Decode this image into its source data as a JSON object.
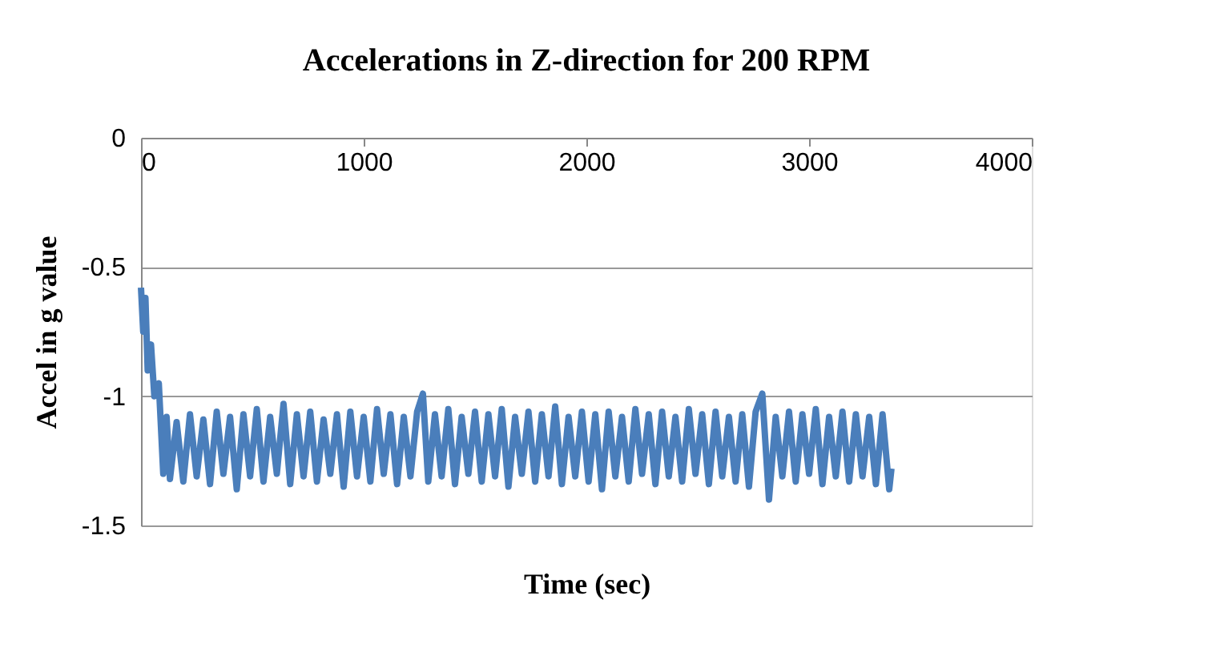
{
  "chart_data": {
    "type": "line",
    "title": "Accelerations in Z-direction for 200 RPM",
    "xlabel": "Time (sec)",
    "ylabel": "Accel in g value",
    "x": [
      0,
      10,
      20,
      30,
      45,
      60,
      80,
      100,
      115,
      130,
      160,
      190,
      220,
      250,
      280,
      310,
      340,
      370,
      400,
      430,
      460,
      490,
      520,
      550,
      580,
      610,
      640,
      670,
      700,
      730,
      760,
      790,
      820,
      850,
      880,
      910,
      940,
      970,
      1000,
      1030,
      1060,
      1090,
      1120,
      1150,
      1180,
      1210,
      1240,
      1266,
      1290,
      1320,
      1350,
      1380,
      1410,
      1440,
      1470,
      1500,
      1530,
      1560,
      1590,
      1620,
      1650,
      1680,
      1710,
      1740,
      1770,
      1800,
      1830,
      1860,
      1890,
      1920,
      1950,
      1980,
      2010,
      2040,
      2070,
      2100,
      2130,
      2160,
      2190,
      2220,
      2250,
      2280,
      2310,
      2340,
      2370,
      2400,
      2430,
      2460,
      2490,
      2520,
      2550,
      2580,
      2610,
      2640,
      2670,
      2700,
      2730,
      2760,
      2790,
      2820,
      2850,
      2880,
      2910,
      2940,
      2970,
      3000,
      3030,
      3060,
      3090,
      3120,
      3150,
      3180,
      3210,
      3240,
      3270,
      3300,
      3330,
      3360,
      3370
    ],
    "series": [
      {
        "color": "#4a7ebb",
        "values": [
          -0.58,
          -0.75,
          -0.62,
          -0.9,
          -0.8,
          -1.0,
          -0.95,
          -1.3,
          -1.08,
          -1.32,
          -1.1,
          -1.33,
          -1.07,
          -1.31,
          -1.09,
          -1.34,
          -1.06,
          -1.3,
          -1.08,
          -1.36,
          -1.07,
          -1.31,
          -1.05,
          -1.33,
          -1.08,
          -1.3,
          -1.03,
          -1.34,
          -1.07,
          -1.31,
          -1.06,
          -1.33,
          -1.09,
          -1.3,
          -1.07,
          -1.35,
          -1.06,
          -1.31,
          -1.08,
          -1.33,
          -1.05,
          -1.3,
          -1.07,
          -1.34,
          -1.08,
          -1.31,
          -1.06,
          -0.99,
          -1.33,
          -1.07,
          -1.31,
          -1.05,
          -1.34,
          -1.08,
          -1.3,
          -1.06,
          -1.33,
          -1.07,
          -1.31,
          -1.05,
          -1.35,
          -1.08,
          -1.3,
          -1.06,
          -1.33,
          -1.07,
          -1.31,
          -1.04,
          -1.34,
          -1.08,
          -1.31,
          -1.06,
          -1.33,
          -1.07,
          -1.36,
          -1.06,
          -1.31,
          -1.08,
          -1.33,
          -1.05,
          -1.3,
          -1.07,
          -1.34,
          -1.06,
          -1.31,
          -1.08,
          -1.33,
          -1.05,
          -1.3,
          -1.07,
          -1.34,
          -1.06,
          -1.31,
          -1.08,
          -1.33,
          -1.07,
          -1.35,
          -1.06,
          -0.99,
          -1.4,
          -1.08,
          -1.31,
          -1.06,
          -1.33,
          -1.07,
          -1.3,
          -1.05,
          -1.34,
          -1.08,
          -1.31,
          -1.06,
          -1.33,
          -1.07,
          -1.31,
          -1.08,
          -1.34,
          -1.07,
          -1.36,
          -1.28
        ]
      }
    ],
    "xlim": [
      0,
      4000
    ],
    "xticks": [
      0,
      1000,
      2000,
      3000,
      4000
    ],
    "ylim": [
      -1.5,
      0
    ],
    "yticks": [
      -1.5,
      -1,
      -0.5,
      0
    ],
    "grid": "y",
    "marker": "none",
    "line_style": "solid"
  }
}
